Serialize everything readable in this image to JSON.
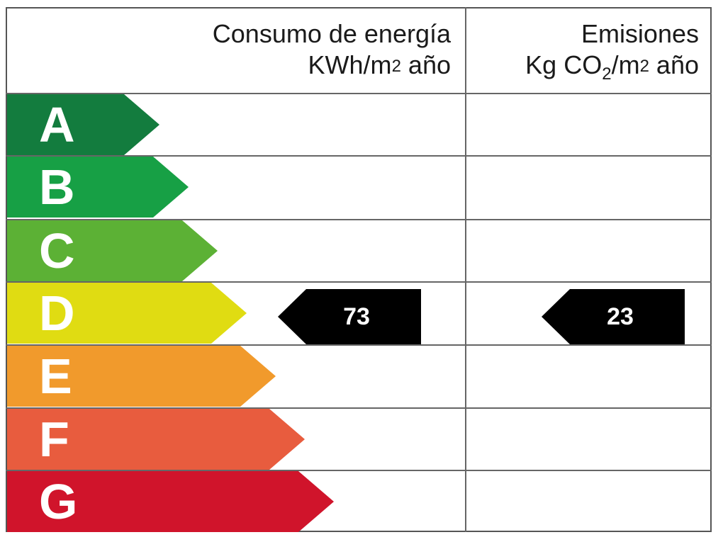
{
  "header": {
    "energy_title": "Consumo de energía",
    "energy_unit_pre": "KWh/m",
    "energy_unit_sup": "2",
    "energy_unit_post": " año",
    "emissions_title": "Emisiones",
    "emissions_unit_pre": "Kg CO",
    "emissions_unit_sub": "2",
    "emissions_unit_mid": "/m",
    "emissions_unit_sup": "2",
    "emissions_unit_post": " año"
  },
  "bands": [
    {
      "letter": "A",
      "color": "#137c3e"
    },
    {
      "letter": "B",
      "color": "#17a045"
    },
    {
      "letter": "C",
      "color": "#5cb135"
    },
    {
      "letter": "D",
      "color": "#e0dc12"
    },
    {
      "letter": "E",
      "color": "#f19a2c"
    },
    {
      "letter": "F",
      "color": "#e85c3e"
    },
    {
      "letter": "G",
      "color": "#d0142b"
    }
  ],
  "ratings": {
    "band": "D",
    "energy_value": "73",
    "emissions_value": "23",
    "arrow_color": "#000000"
  }
}
